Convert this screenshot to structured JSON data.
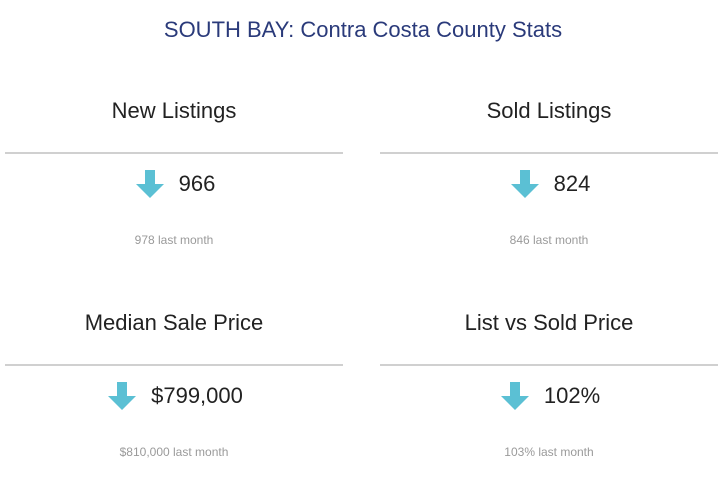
{
  "page": {
    "title": "SOUTH BAY: Contra Costa County Stats"
  },
  "colors": {
    "title": "#2a3a7a",
    "arrow": "#5bc0d4",
    "divider": "#d0d0d0",
    "muted": "#9a9a9a"
  },
  "stats": [
    {
      "label": "New Listings",
      "value": "966",
      "previous": "978 last month",
      "trend_icon": "arrow-down-icon"
    },
    {
      "label": "Sold Listings",
      "value": "824",
      "previous": "846 last month",
      "trend_icon": "arrow-down-icon"
    },
    {
      "label": "Median Sale Price",
      "value": "$799,000",
      "previous": "$810,000 last month",
      "trend_icon": "arrow-down-icon"
    },
    {
      "label": "List vs Sold Price",
      "value": "102%",
      "previous": "103% last month",
      "trend_icon": "arrow-down-icon"
    }
  ]
}
